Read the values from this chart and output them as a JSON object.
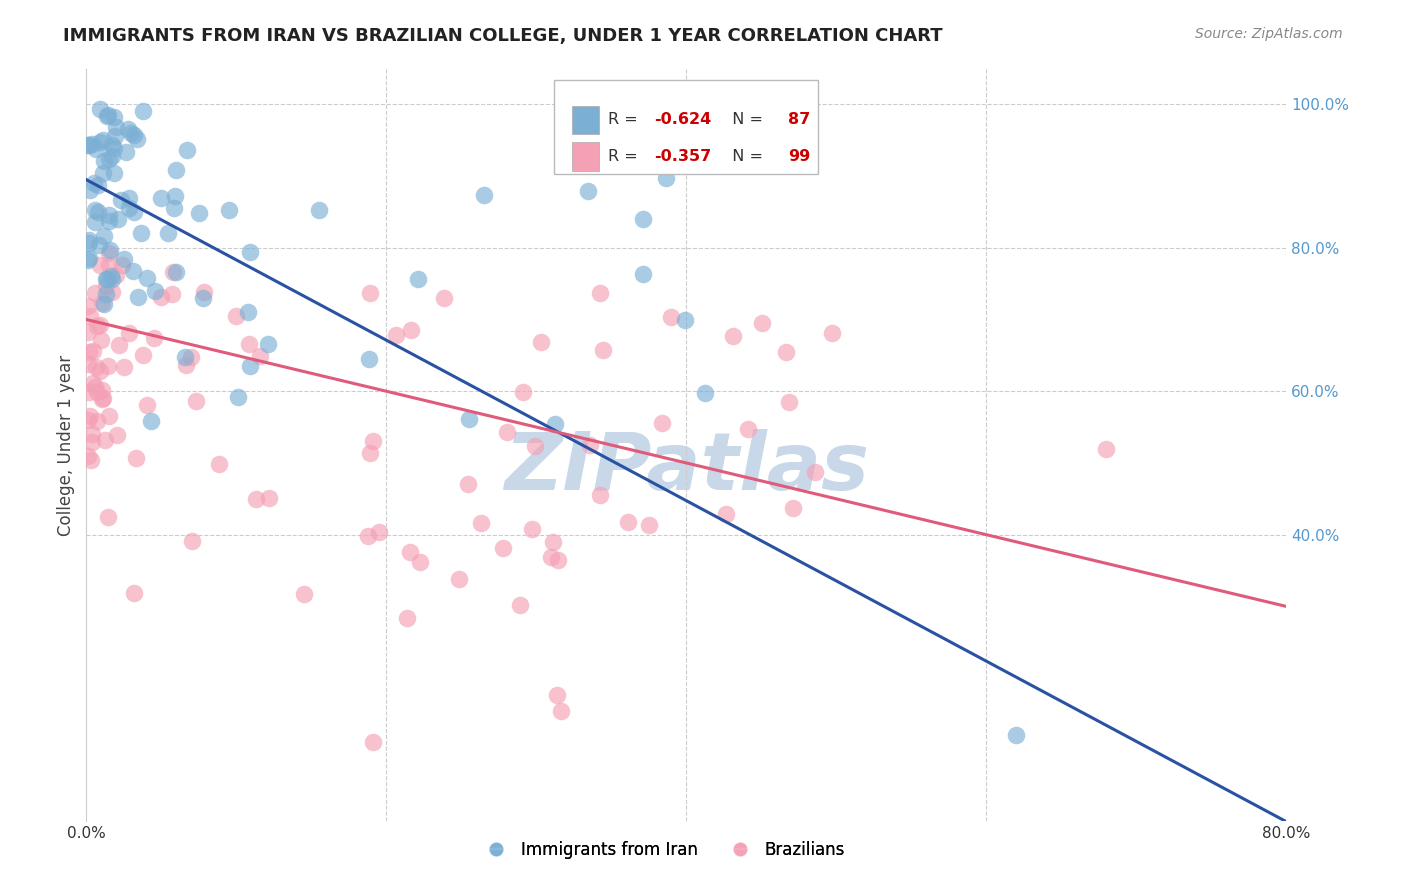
{
  "title": "IMMIGRANTS FROM IRAN VS BRAZILIAN COLLEGE, UNDER 1 YEAR CORRELATION CHART",
  "source": "Source: ZipAtlas.com",
  "ylabel": "College, Under 1 year",
  "xlim": [
    0.0,
    0.8
  ],
  "ylim": [
    0.0,
    1.05
  ],
  "x_ticks": [
    0.0,
    0.2,
    0.4,
    0.6,
    0.8
  ],
  "x_tick_labels": [
    "0.0%",
    "",
    "",
    "",
    "80.0%"
  ],
  "y_tick_labels_right": [
    "100.0%",
    "80.0%",
    "60.0%",
    "40.0%"
  ],
  "y_ticks_right": [
    1.0,
    0.8,
    0.6,
    0.4
  ],
  "blue_R": -0.624,
  "blue_N": 87,
  "pink_R": -0.357,
  "pink_N": 99,
  "blue_color": "#7bafd4",
  "pink_color": "#f4a0b5",
  "blue_line_color": "#2952a3",
  "pink_line_color": "#e05a7a",
  "blue_label": "Immigrants from Iran",
  "pink_label": "Brazilians",
  "watermark": "ZIPatlas",
  "watermark_color": "#c8d8e8",
  "background_color": "#ffffff",
  "grid_color": "#cccccc",
  "title_color": "#222222",
  "right_axis_color": "#5599cc",
  "blue_line_x0": 0.0,
  "blue_line_y0": 0.895,
  "blue_line_x1": 0.8,
  "blue_line_y1": 0.0,
  "pink_line_x0": 0.0,
  "pink_line_y0": 0.7,
  "pink_line_x1": 0.8,
  "pink_line_y1": 0.3
}
